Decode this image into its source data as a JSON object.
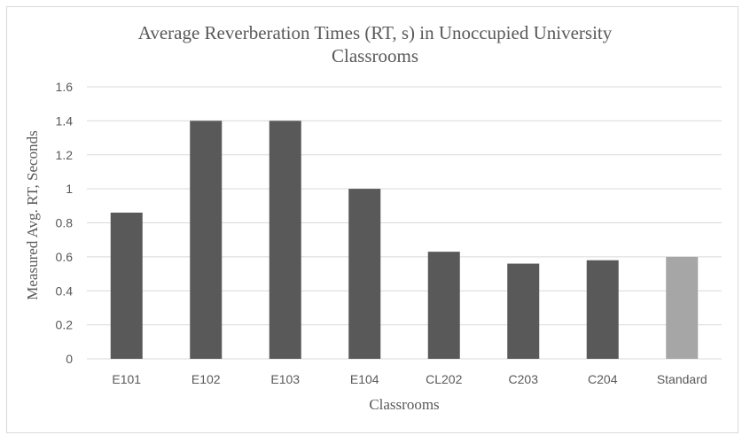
{
  "chart_data": {
    "type": "bar",
    "title_line1": "Average Reverberation Times (RT, s) in Unoccupied University",
    "title_line2": "Classrooms",
    "xlabel": "Classrooms",
    "ylabel": "Measured Avg. RT, Seconds",
    "categories": [
      "E101",
      "E102",
      "E103",
      "E104",
      "CL202",
      "C203",
      "C204",
      "Standard"
    ],
    "values": [
      0.86,
      1.4,
      1.4,
      1.0,
      0.63,
      0.56,
      0.58,
      0.6
    ],
    "ylim": [
      0,
      1.6
    ],
    "yticks": [
      "0",
      "0.2",
      "0.4",
      "0.6",
      "0.8",
      "1",
      "1.2",
      "1.4",
      "1.6"
    ],
    "grid": true,
    "colors": {
      "bar": "#595959",
      "standard_bar": "#a6a6a6",
      "gridline": "#d9d9d9",
      "text": "#595959"
    }
  }
}
